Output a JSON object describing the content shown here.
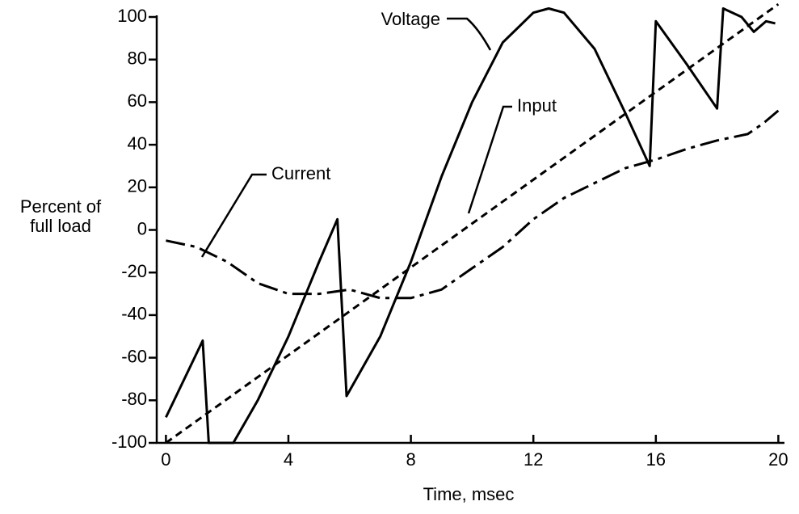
{
  "chart_data": {
    "type": "line",
    "xlabel": "Time, msec",
    "ylabel": [
      "Percent of",
      "full load"
    ],
    "xlim": [
      -0.3,
      20.2
    ],
    "ylim": [
      -100,
      100
    ],
    "xticks": [
      0,
      4,
      8,
      12,
      16,
      20
    ],
    "yticks": [
      -100,
      -80,
      -60,
      -40,
      -20,
      0,
      20,
      40,
      60,
      80,
      100
    ],
    "annotations": [
      "Voltage",
      "Input",
      "Current"
    ],
    "series": [
      {
        "name": "Voltage",
        "color": "#000000",
        "style": "solid",
        "x": [
          0,
          1.2,
          1.4,
          2.2,
          3,
          4,
          5,
          5.6,
          5.9,
          7,
          8,
          9,
          10,
          11,
          12,
          12.5,
          13,
          14,
          15,
          15.8,
          16,
          17,
          18,
          18.2,
          18.8,
          19.2,
          19.6,
          19.9
        ],
        "values": [
          -88,
          -52,
          -100,
          -100,
          -80,
          -50,
          -15,
          5,
          -78,
          -50,
          -15,
          25,
          60,
          88,
          102,
          104,
          102,
          85,
          55,
          30,
          98,
          78,
          57,
          104,
          100,
          93,
          98,
          97
        ]
      },
      {
        "name": "Input",
        "color": "#000000",
        "style": "dashed",
        "x": [
          0,
          20
        ],
        "values": [
          -100,
          106
        ]
      },
      {
        "name": "Current",
        "color": "#000000",
        "style": "dashdot",
        "x": [
          0,
          1,
          2,
          3,
          4,
          5,
          6,
          7,
          8,
          9,
          10,
          11,
          12,
          13,
          14,
          15,
          16,
          17,
          18,
          19,
          19.5,
          20
        ],
        "values": [
          -5,
          -8,
          -15,
          -25,
          -30,
          -30,
          -28,
          -32,
          -32,
          -28,
          -18,
          -8,
          5,
          15,
          22,
          29,
          33,
          38,
          42,
          45,
          50,
          56
        ]
      }
    ]
  }
}
